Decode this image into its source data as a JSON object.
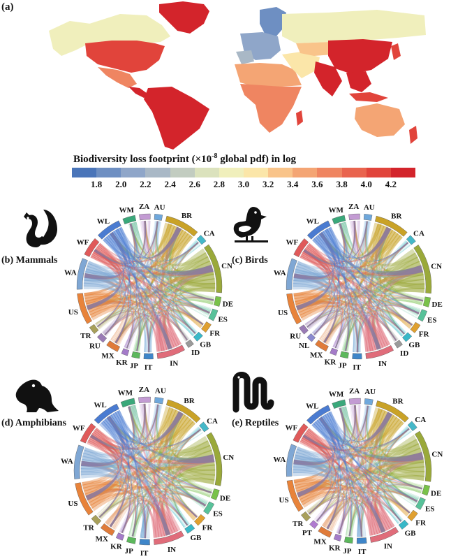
{
  "map": {
    "label": "(a)",
    "legend_title_main": "Biodiversity loss footprint (×10",
    "legend_title_exp": "-8",
    "legend_title_tail": " global pdf)  in log",
    "colors": [
      "#4a75b9",
      "#6e8fc2",
      "#8fa6c9",
      "#a9b8c6",
      "#c2ccc0",
      "#dbe2bd",
      "#f0efbc",
      "#fbe6a9",
      "#f9c48a",
      "#f4a574",
      "#ef8561",
      "#e9644e",
      "#e1443b",
      "#d3242b"
    ],
    "ticks": [
      "1.8",
      "2.0",
      "2.2",
      "2.4",
      "2.6",
      "2.8",
      "3.0",
      "3.2",
      "3.4",
      "3.6",
      "3.8",
      "4.0",
      "4.2"
    ]
  },
  "panels": [
    {
      "id": "b",
      "label": "(b) Mammals",
      "icon": "squirrel-icon",
      "nodes": [
        {
          "code": "WM",
          "color": "#3aa87a"
        },
        {
          "code": "ZA",
          "color": "#c39bd3"
        },
        {
          "code": "AU",
          "color": "#6fa8dc"
        },
        {
          "code": "BR",
          "color": "#c9a227"
        },
        {
          "code": "CA",
          "color": "#45b8c9"
        },
        {
          "code": "CN",
          "color": "#9aa93a"
        },
        {
          "code": "DE",
          "color": "#79c24a"
        },
        {
          "code": "ES",
          "color": "#58c29a"
        },
        {
          "code": "FR",
          "color": "#e0a030"
        },
        {
          "code": "GB",
          "color": "#38b8c8"
        },
        {
          "code": "ID",
          "color": "#9a9a9a"
        },
        {
          "code": "IN",
          "color": "#e06c7a"
        },
        {
          "code": "IT",
          "color": "#3f86c9"
        },
        {
          "code": "JP",
          "color": "#5cb85c"
        },
        {
          "code": "KR",
          "color": "#a47bc9"
        },
        {
          "code": "MX",
          "color": "#e07b39"
        },
        {
          "code": "RU",
          "color": "#9a7bb5"
        },
        {
          "code": "TR",
          "color": "#a8a05a"
        },
        {
          "code": "US",
          "color": "#e8833a"
        },
        {
          "code": "WA",
          "color": "#7fa7d4"
        },
        {
          "code": "WF",
          "color": "#e05a5a"
        },
        {
          "code": "WL",
          "color": "#4a7bd1"
        }
      ]
    },
    {
      "id": "c",
      "label": "(c) Birds",
      "icon": "bird-icon",
      "nodes": [
        {
          "code": "WM",
          "color": "#3aa87a"
        },
        {
          "code": "ZA",
          "color": "#c39bd3"
        },
        {
          "code": "AU",
          "color": "#6fa8dc"
        },
        {
          "code": "BR",
          "color": "#c9a227"
        },
        {
          "code": "CA",
          "color": "#45b8c9"
        },
        {
          "code": "CN",
          "color": "#9aa93a"
        },
        {
          "code": "DE",
          "color": "#79c24a"
        },
        {
          "code": "ES",
          "color": "#58c29a"
        },
        {
          "code": "FR",
          "color": "#e0a030"
        },
        {
          "code": "GB",
          "color": "#38b8c8"
        },
        {
          "code": "ID",
          "color": "#9a9a9a"
        },
        {
          "code": "IN",
          "color": "#e06c7a"
        },
        {
          "code": "IT",
          "color": "#3f86c9"
        },
        {
          "code": "JP",
          "color": "#5cb85c"
        },
        {
          "code": "KR",
          "color": "#a47bc9"
        },
        {
          "code": "MX",
          "color": "#e07b39"
        },
        {
          "code": "NL",
          "color": "#8a8ad0"
        },
        {
          "code": "RU",
          "color": "#9a7bb5"
        },
        {
          "code": "US",
          "color": "#e8833a"
        },
        {
          "code": "WA",
          "color": "#7fa7d4"
        },
        {
          "code": "WF",
          "color": "#e05a5a"
        },
        {
          "code": "WL",
          "color": "#4a7bd1"
        }
      ]
    },
    {
      "id": "d",
      "label": "(d) Amphibians",
      "icon": "frog-icon",
      "nodes": [
        {
          "code": "WM",
          "color": "#3aa87a"
        },
        {
          "code": "ZA",
          "color": "#c39bd3"
        },
        {
          "code": "AU",
          "color": "#6fa8dc"
        },
        {
          "code": "BR",
          "color": "#c9a227"
        },
        {
          "code": "CA",
          "color": "#45b8c9"
        },
        {
          "code": "CN",
          "color": "#9aa93a"
        },
        {
          "code": "DE",
          "color": "#79c24a"
        },
        {
          "code": "ES",
          "color": "#58c29a"
        },
        {
          "code": "FR",
          "color": "#e0a030"
        },
        {
          "code": "GB",
          "color": "#38b8c8"
        },
        {
          "code": "IN",
          "color": "#e06c7a"
        },
        {
          "code": "IT",
          "color": "#3f86c9"
        },
        {
          "code": "JP",
          "color": "#5cb85c"
        },
        {
          "code": "KR",
          "color": "#a47bc9"
        },
        {
          "code": "MX",
          "color": "#e07b39"
        },
        {
          "code": "TR",
          "color": "#a8a05a"
        },
        {
          "code": "US",
          "color": "#e8833a"
        },
        {
          "code": "WA",
          "color": "#7fa7d4"
        },
        {
          "code": "WF",
          "color": "#e05a5a"
        },
        {
          "code": "WL",
          "color": "#4a7bd1"
        }
      ]
    },
    {
      "id": "e",
      "label": "(e) Reptiles",
      "icon": "snake-icon",
      "nodes": [
        {
          "code": "WM",
          "color": "#3aa87a"
        },
        {
          "code": "ZA",
          "color": "#c39bd3"
        },
        {
          "code": "AU",
          "color": "#6fa8dc"
        },
        {
          "code": "BR",
          "color": "#c9a227"
        },
        {
          "code": "CA",
          "color": "#45b8c9"
        },
        {
          "code": "CN",
          "color": "#9aa93a"
        },
        {
          "code": "DE",
          "color": "#79c24a"
        },
        {
          "code": "ES",
          "color": "#58c29a"
        },
        {
          "code": "FR",
          "color": "#e0a030"
        },
        {
          "code": "GB",
          "color": "#38b8c8"
        },
        {
          "code": "IN",
          "color": "#e06c7a"
        },
        {
          "code": "IT",
          "color": "#3f86c9"
        },
        {
          "code": "JP",
          "color": "#5cb85c"
        },
        {
          "code": "KR",
          "color": "#a47bc9"
        },
        {
          "code": "MX",
          "color": "#e07b39"
        },
        {
          "code": "PT",
          "color": "#b07bd0"
        },
        {
          "code": "TR",
          "color": "#a8a05a"
        },
        {
          "code": "US",
          "color": "#e8833a"
        },
        {
          "code": "WA",
          "color": "#7fa7d4"
        },
        {
          "code": "WF",
          "color": "#e05a5a"
        },
        {
          "code": "WL",
          "color": "#4a7bd1"
        }
      ]
    }
  ]
}
